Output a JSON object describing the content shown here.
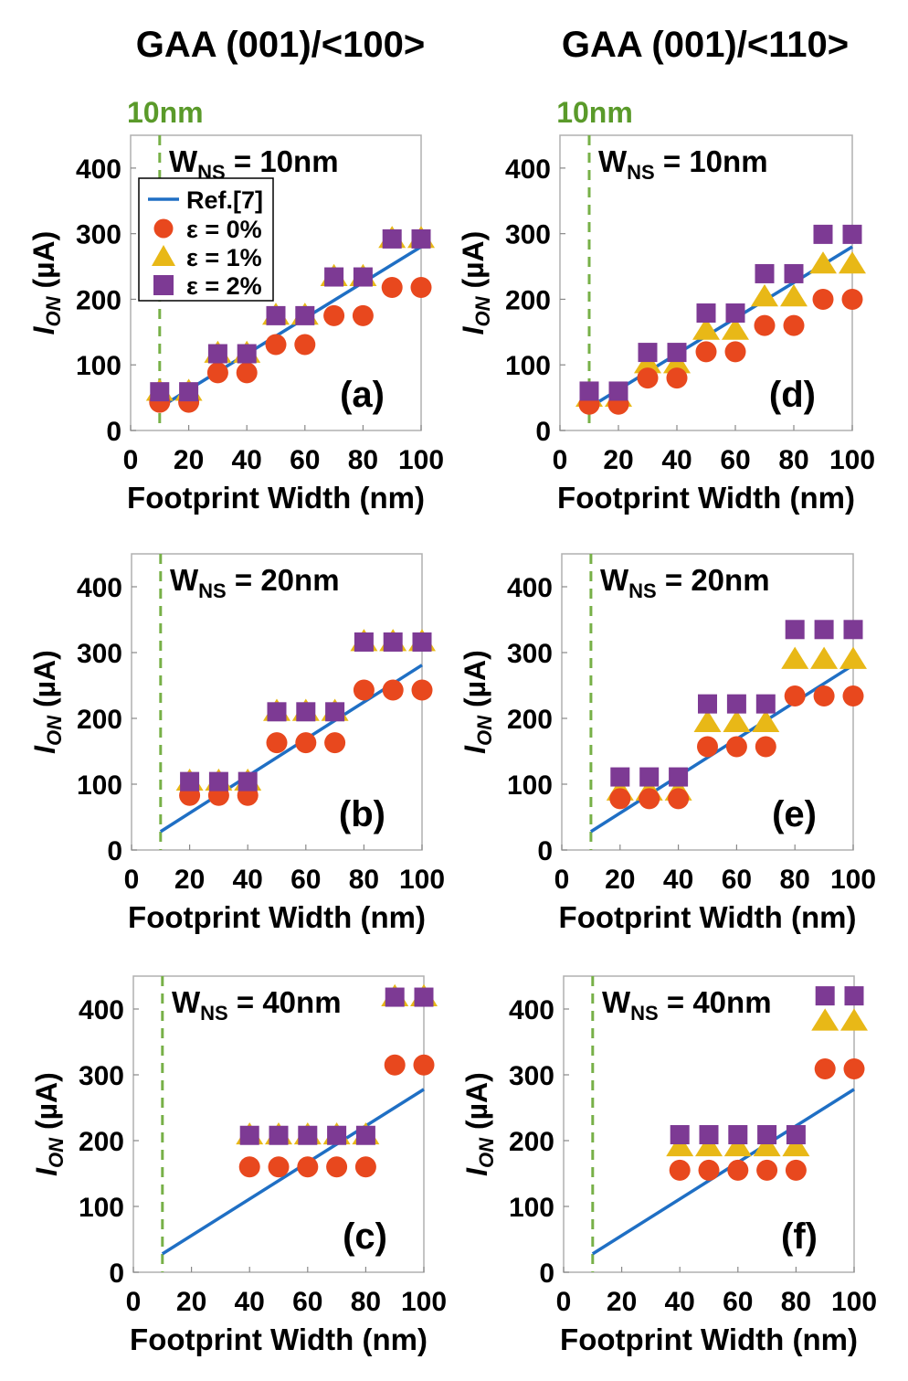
{
  "column_titles": [
    "GAA (001)/<100>",
    "GAA (001)/<110>"
  ],
  "vline_label": "10nm",
  "colors": {
    "ref": "#1f6fc4",
    "eps0": "#e8481e",
    "eps1": "#e8b817",
    "eps2": "#7d3a94",
    "vline": "#77b047",
    "frame": "#b0b0b0"
  },
  "legend": {
    "entries": [
      "Ref.[7]",
      "ε = 0%",
      "ε = 1%",
      "ε = 2%"
    ]
  },
  "chart_data": [
    {
      "type": "scatter",
      "panel_label": "(a)",
      "annotation": {
        "main": "W",
        "sub": "NS",
        "rest": " = 10nm"
      },
      "xlabel": "Footprint Width (nm)",
      "ylabel": {
        "main": "I",
        "sub": "ON",
        "rest": " (µA)"
      },
      "xlim": [
        0,
        100
      ],
      "ylim": [
        0,
        450
      ],
      "xticks": [
        "0",
        "20",
        "40",
        "60",
        "80",
        "100"
      ],
      "yticks": [
        "0",
        "100",
        "200",
        "300",
        "400"
      ],
      "vline_x": 10,
      "reference_line": {
        "name": "Ref.[7]",
        "x": [
          10,
          100
        ],
        "y": [
          35,
          280
        ]
      },
      "x": [
        10,
        20,
        30,
        40,
        50,
        60,
        70,
        80,
        90,
        100
      ],
      "series": [
        {
          "name": "ε = 0%",
          "marker": "circle",
          "values": [
            43,
            43,
            88,
            88,
            131,
            131,
            175,
            175,
            218,
            218
          ]
        },
        {
          "name": "ε = 1%",
          "marker": "triangle",
          "values": [
            59,
            59,
            117,
            117,
            175,
            175,
            234,
            234,
            292,
            292
          ]
        },
        {
          "name": "ε = 2%",
          "marker": "square",
          "values": [
            59,
            59,
            117,
            117,
            175,
            175,
            234,
            234,
            292,
            292
          ]
        }
      ],
      "legend": true
    },
    {
      "type": "scatter",
      "panel_label": "(b)",
      "annotation": {
        "main": "W",
        "sub": "NS",
        "rest": " = 20nm"
      },
      "xlabel": "Footprint Width (nm)",
      "ylabel": {
        "main": "I",
        "sub": "ON",
        "rest": " (µA)"
      },
      "xlim": [
        0,
        100
      ],
      "ylim": [
        0,
        450
      ],
      "xticks": [
        "0",
        "20",
        "40",
        "60",
        "80",
        "100"
      ],
      "yticks": [
        "0",
        "100",
        "200",
        "300",
        "400"
      ],
      "vline_x": 10,
      "reference_line": {
        "name": "Ref.[7]",
        "x": [
          10,
          100
        ],
        "y": [
          28,
          281
        ]
      },
      "x": [
        20,
        30,
        40,
        50,
        60,
        70,
        80,
        90,
        100
      ],
      "series": [
        {
          "name": "ε = 0%",
          "marker": "circle",
          "values": [
            83,
            83,
            83,
            163,
            163,
            163,
            243,
            243,
            243
          ]
        },
        {
          "name": "ε = 1%",
          "marker": "triangle",
          "values": [
            104,
            104,
            104,
            210,
            210,
            210,
            316,
            316,
            316
          ]
        },
        {
          "name": "ε = 2%",
          "marker": "square",
          "values": [
            104,
            104,
            104,
            210,
            210,
            210,
            316,
            316,
            316
          ]
        }
      ],
      "legend": false
    },
    {
      "type": "scatter",
      "panel_label": "(c)",
      "annotation": {
        "main": "W",
        "sub": "NS",
        "rest": " = 40nm"
      },
      "xlabel": "Footprint Width (nm)",
      "ylabel": {
        "main": "I",
        "sub": "ON",
        "rest": " (µA)"
      },
      "xlim": [
        0,
        100
      ],
      "ylim": [
        0,
        450
      ],
      "xticks": [
        "0",
        "20",
        "40",
        "60",
        "80",
        "100"
      ],
      "yticks": [
        "0",
        "100",
        "200",
        "300",
        "400"
      ],
      "vline_x": 10,
      "reference_line": {
        "name": "Ref.[7]",
        "x": [
          10,
          100
        ],
        "y": [
          28,
          278
        ]
      },
      "x": [
        40,
        50,
        60,
        70,
        80,
        90,
        100
      ],
      "series": [
        {
          "name": "ε = 0%",
          "marker": "circle",
          "values": [
            160,
            160,
            160,
            160,
            160,
            315,
            315
          ]
        },
        {
          "name": "ε = 1%",
          "marker": "triangle",
          "values": [
            208,
            208,
            208,
            208,
            208,
            418,
            418
          ]
        },
        {
          "name": "ε = 2%",
          "marker": "square",
          "values": [
            208,
            208,
            208,
            208,
            208,
            418,
            418
          ]
        }
      ],
      "legend": false
    },
    {
      "type": "scatter",
      "panel_label": "(d)",
      "annotation": {
        "main": "W",
        "sub": "NS",
        "rest": " = 10nm"
      },
      "xlabel": "Footprint Width (nm)",
      "ylabel": {
        "main": "I",
        "sub": "ON",
        "rest": " (µA)"
      },
      "xlim": [
        0,
        100
      ],
      "ylim": [
        0,
        450
      ],
      "xticks": [
        "0",
        "20",
        "40",
        "60",
        "80",
        "100"
      ],
      "yticks": [
        "0",
        "100",
        "200",
        "300",
        "400"
      ],
      "vline_x": 10,
      "reference_line": {
        "name": "Ref.[7]",
        "x": [
          10,
          100
        ],
        "y": [
          35,
          280
        ]
      },
      "x": [
        10,
        20,
        30,
        40,
        50,
        60,
        70,
        80,
        90,
        100
      ],
      "series": [
        {
          "name": "ε = 0%",
          "marker": "circle",
          "values": [
            40,
            40,
            80,
            80,
            120,
            120,
            160,
            160,
            200,
            200
          ]
        },
        {
          "name": "ε = 1%",
          "marker": "triangle",
          "values": [
            50,
            50,
            101,
            101,
            152,
            152,
            203,
            203,
            253,
            253
          ]
        },
        {
          "name": "ε = 2%",
          "marker": "square",
          "values": [
            60,
            60,
            119,
            119,
            179,
            179,
            239,
            239,
            299,
            299
          ]
        }
      ],
      "legend": false
    },
    {
      "type": "scatter",
      "panel_label": "(e)",
      "annotation": {
        "main": "W",
        "sub": "NS",
        "rest": " = 20nm"
      },
      "xlabel": "Footprint Width (nm)",
      "ylabel": {
        "main": "I",
        "sub": "ON",
        "rest": " (µA)"
      },
      "xlim": [
        0,
        100
      ],
      "ylim": [
        0,
        450
      ],
      "xticks": [
        "0",
        "20",
        "40",
        "60",
        "80",
        "100"
      ],
      "yticks": [
        "0",
        "100",
        "200",
        "300",
        "400"
      ],
      "vline_x": 10,
      "reference_line": {
        "name": "Ref.[7]",
        "x": [
          10,
          100
        ],
        "y": [
          28,
          281
        ]
      },
      "x": [
        20,
        30,
        40,
        50,
        60,
        70,
        80,
        90,
        100
      ],
      "series": [
        {
          "name": "ε = 0%",
          "marker": "circle",
          "values": [
            78,
            78,
            78,
            157,
            157,
            157,
            234,
            234,
            234
          ]
        },
        {
          "name": "ε = 1%",
          "marker": "triangle",
          "values": [
            89,
            89,
            89,
            193,
            193,
            193,
            289,
            289,
            289
          ]
        },
        {
          "name": "ε = 2%",
          "marker": "square",
          "values": [
            111,
            111,
            111,
            222,
            222,
            222,
            335,
            335,
            335
          ]
        }
      ],
      "legend": false
    },
    {
      "type": "scatter",
      "panel_label": "(f)",
      "annotation": {
        "main": "W",
        "sub": "NS",
        "rest": " = 40nm"
      },
      "xlabel": "Footprint Width (nm)",
      "ylabel": {
        "main": "I",
        "sub": "ON",
        "rest": " (µA)"
      },
      "xlim": [
        0,
        100
      ],
      "ylim": [
        0,
        450
      ],
      "xticks": [
        "0",
        "20",
        "40",
        "60",
        "80",
        "100"
      ],
      "yticks": [
        "0",
        "100",
        "200",
        "300",
        "400"
      ],
      "vline_x": 10,
      "reference_line": {
        "name": "Ref.[7]",
        "x": [
          10,
          100
        ],
        "y": [
          28,
          278
        ]
      },
      "x": [
        40,
        50,
        60,
        70,
        80,
        90,
        100
      ],
      "series": [
        {
          "name": "ε = 0%",
          "marker": "circle",
          "values": [
            155,
            155,
            155,
            155,
            155,
            309,
            309
          ]
        },
        {
          "name": "ε = 1%",
          "marker": "triangle",
          "values": [
            190,
            190,
            190,
            190,
            190,
            381,
            381
          ]
        },
        {
          "name": "ε = 2%",
          "marker": "square",
          "values": [
            209,
            209,
            209,
            209,
            209,
            420,
            420
          ]
        }
      ],
      "legend": false
    }
  ]
}
